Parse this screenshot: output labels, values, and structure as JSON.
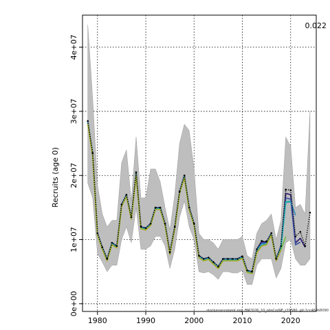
{
  "chart_data": {
    "type": "line",
    "title": "",
    "xlabel": "",
    "ylabel": "Recruits (age 0)",
    "corner_label": "0.022",
    "footnote": "stockassessment.org, BM2026_10_obsCorNE_r19580, git:1cc464b8090",
    "xlim": [
      1976.9,
      2025.3
    ],
    "ylim": [
      -1200000,
      45000000
    ],
    "x_ticks": [
      1980,
      1990,
      2000,
      2010,
      2020
    ],
    "x_tick_labels": [
      "1980",
      "1990",
      "2000",
      "2010",
      "2020"
    ],
    "y_ticks": [
      0,
      10000000,
      20000000,
      30000000,
      40000000
    ],
    "y_tick_labels": [
      "0e+00",
      "1e+07",
      "2e+07",
      "3e+07",
      "4e+07"
    ],
    "grid": true,
    "colors": {
      "band": "#bebebe",
      "band_edge": "#9a9a9a",
      "grid": "#000000",
      "main": "#000000",
      "retro": [
        "#2b1b6b",
        "#3a4ea3",
        "#2e8cb8",
        "#27b0b0",
        "#6fbf4a",
        "#a8a828"
      ]
    },
    "band_years": [
      1978,
      1979,
      1980,
      1981,
      1982,
      1983,
      1984,
      1985,
      1986,
      1987,
      1988,
      1989,
      1990,
      1991,
      1992,
      1993,
      1994,
      1995,
      1996,
      1997,
      1998,
      1999,
      2000,
      2001,
      2002,
      2003,
      2004,
      2005,
      2006,
      2007,
      2008,
      2009,
      2010,
      2011,
      2012,
      2013,
      2014,
      2015,
      2016,
      2017,
      2018,
      2019,
      2020,
      2021,
      2022,
      2023,
      2024
    ],
    "band_lower": [
      18800000,
      16500000,
      7800000,
      6500000,
      5000000,
      6000000,
      6000000,
      10000000,
      12000000,
      9500000,
      15000000,
      8500000,
      8500000,
      9000000,
      10500000,
      10500000,
      9000000,
      5500000,
      8500000,
      13500000,
      16000000,
      12000000,
      10000000,
      5000000,
      4800000,
      5000000,
      4500000,
      3800000,
      5000000,
      5000000,
      4800000,
      4800000,
      5200000,
      3000000,
      3000000,
      6000000,
      7000000,
      7000000,
      7000000,
      4000000,
      5500000,
      9500000,
      10000000,
      7000000,
      6000000,
      6000000,
      7000000
    ],
    "band_upper": [
      43500000,
      32000000,
      18500000,
      14000000,
      12000000,
      13000000,
      13000000,
      22000000,
      24000000,
      16000000,
      26000000,
      16500000,
      16500000,
      21000000,
      21000000,
      19000000,
      15000000,
      11500000,
      17000000,
      25000000,
      28000000,
      27000000,
      21000000,
      11000000,
      10000000,
      10000000,
      9500000,
      8500000,
      10000000,
      10000000,
      10000000,
      10000000,
      10500000,
      7500000,
      7000000,
      11000000,
      12500000,
      13000000,
      14000000,
      10000000,
      13000000,
      26000000,
      24500000,
      15000000,
      15500000,
      14000000,
      30000000
    ],
    "series": [
      {
        "name": "",
        "color": "#000000",
        "style": "dotted-points",
        "x": [
          1978,
          1979,
          1980,
          1981,
          1982,
          1983,
          1984,
          1985,
          1986,
          1987,
          1988,
          1989,
          1990,
          1991,
          1992,
          1993,
          1994,
          1995,
          1996,
          1997,
          1998,
          1999,
          2000,
          2001,
          2002,
          2003,
          2004,
          2005,
          2006,
          2007,
          2008,
          2009,
          2010,
          2011,
          2012,
          2013,
          2014,
          2015,
          2016,
          2017,
          2018,
          2019,
          2020,
          2021,
          2022,
          2023,
          2024
        ],
        "y": [
          28500000,
          23500000,
          11000000,
          8800000,
          7000000,
          9500000,
          9000000,
          15500000,
          17000000,
          13500000,
          20500000,
          12000000,
          11800000,
          12500000,
          15000000,
          15000000,
          12500000,
          8000000,
          12000000,
          17500000,
          20000000,
          15000000,
          12500000,
          7500000,
          7000000,
          7200000,
          6500000,
          5800000,
          7000000,
          7000000,
          7000000,
          7000000,
          7400000,
          5200000,
          5000000,
          8500000,
          9800000,
          9700000,
          11000000,
          7000000,
          9000000,
          17800000,
          17700000,
          10500000,
          11200000,
          9000000,
          14200000
        ]
      },
      {
        "name": "",
        "color": "#2b1b6b",
        "style": "line",
        "x": [
          1978,
          1979,
          1980,
          1981,
          1982,
          1983,
          1984,
          1985,
          1986,
          1987,
          1988,
          1989,
          1990,
          1991,
          1992,
          1993,
          1994,
          1995,
          1996,
          1997,
          1998,
          1999,
          2000,
          2001,
          2002,
          2003,
          2004,
          2005,
          2006,
          2007,
          2008,
          2009,
          2010,
          2011,
          2012,
          2013,
          2014,
          2015,
          2016,
          2017,
          2018,
          2019,
          2020,
          2021,
          2022,
          2023
        ],
        "y": [
          28400000,
          23500000,
          11000000,
          8800000,
          7000000,
          9500000,
          9000000,
          15500000,
          17000000,
          13500000,
          20500000,
          12000000,
          11800000,
          12500000,
          15000000,
          15000000,
          12500000,
          8000000,
          12000000,
          17500000,
          20000000,
          15000000,
          12500000,
          7500000,
          7000000,
          7200000,
          6500000,
          5800000,
          7000000,
          7000000,
          7000000,
          7000000,
          7400000,
          5200000,
          5000000,
          8500000,
          9700000,
          9600000,
          11000000,
          7000000,
          9000000,
          17200000,
          17000000,
          9500000,
          10200000,
          8800000
        ]
      },
      {
        "name": "",
        "color": "#3a4ea3",
        "style": "line",
        "x": [
          1978,
          1979,
          1980,
          1981,
          1982,
          1983,
          1984,
          1985,
          1986,
          1987,
          1988,
          1989,
          1990,
          1991,
          1992,
          1993,
          1994,
          1995,
          1996,
          1997,
          1998,
          1999,
          2000,
          2001,
          2002,
          2003,
          2004,
          2005,
          2006,
          2007,
          2008,
          2009,
          2010,
          2011,
          2012,
          2013,
          2014,
          2015,
          2016,
          2017,
          2018,
          2019,
          2020,
          2021,
          2022
        ],
        "y": [
          28300000,
          23400000,
          11000000,
          8800000,
          7000000,
          9500000,
          9000000,
          15500000,
          17000000,
          13500000,
          20400000,
          12000000,
          11800000,
          12500000,
          15000000,
          15000000,
          12500000,
          8000000,
          12000000,
          17500000,
          20000000,
          15000000,
          12500000,
          7500000,
          7000000,
          7200000,
          6500000,
          5800000,
          7000000,
          7000000,
          7000000,
          7000000,
          7400000,
          5200000,
          5000000,
          8500000,
          9500000,
          9500000,
          11000000,
          7000000,
          9000000,
          16500000,
          16300000,
          9200000,
          9600000
        ]
      },
      {
        "name": "",
        "color": "#2e8cb8",
        "style": "line",
        "x": [
          1978,
          1979,
          1980,
          1981,
          1982,
          1983,
          1984,
          1985,
          1986,
          1987,
          1988,
          1989,
          1990,
          1991,
          1992,
          1993,
          1994,
          1995,
          1996,
          1997,
          1998,
          1999,
          2000,
          2001,
          2002,
          2003,
          2004,
          2005,
          2006,
          2007,
          2008,
          2009,
          2010,
          2011,
          2012,
          2013,
          2014,
          2015,
          2016,
          2017,
          2018,
          2019,
          2020,
          2021
        ],
        "y": [
          28300000,
          23300000,
          10900000,
          8700000,
          6900000,
          9400000,
          8900000,
          15400000,
          16900000,
          13400000,
          20300000,
          11900000,
          11700000,
          12400000,
          14900000,
          14900000,
          12400000,
          7900000,
          11900000,
          17400000,
          19900000,
          14900000,
          12400000,
          7400000,
          6900000,
          7100000,
          6400000,
          5700000,
          6900000,
          6900000,
          6900000,
          6900000,
          7300000,
          5100000,
          4900000,
          8300000,
          9300000,
          9400000,
          10900000,
          6900000,
          8800000,
          15800000,
          15900000,
          13800000
        ]
      },
      {
        "name": "",
        "color": "#27b0b0",
        "style": "line",
        "x": [
          1978,
          1979,
          1980,
          1981,
          1982,
          1983,
          1984,
          1985,
          1986,
          1987,
          1988,
          1989,
          1990,
          1991,
          1992,
          1993,
          1994,
          1995,
          1996,
          1997,
          1998,
          1999,
          2000,
          2001,
          2002,
          2003,
          2004,
          2005,
          2006,
          2007,
          2008,
          2009,
          2010,
          2011,
          2012,
          2013,
          2014,
          2015,
          2016,
          2017,
          2018,
          2019,
          2020
        ],
        "y": [
          28200000,
          23200000,
          10800000,
          8600000,
          6800000,
          9300000,
          8800000,
          15300000,
          16800000,
          13300000,
          20200000,
          11800000,
          11600000,
          12300000,
          14800000,
          14800000,
          12300000,
          7800000,
          11800000,
          17300000,
          19800000,
          14800000,
          12300000,
          7300000,
          6800000,
          7000000,
          6300000,
          5600000,
          6800000,
          6800000,
          6800000,
          6800000,
          7200000,
          5000000,
          4800000,
          8100000,
          9100000,
          9300000,
          10800000,
          6800000,
          8600000,
          15900000,
          16000000
        ]
      },
      {
        "name": "",
        "color": "#6fbf4a",
        "style": "line",
        "x": [
          1978,
          1979,
          1980,
          1981,
          1982,
          1983,
          1984,
          1985,
          1986,
          1987,
          1988,
          1989,
          1990,
          1991,
          1992,
          1993,
          1994,
          1995,
          1996,
          1997,
          1998,
          1999,
          2000,
          2001,
          2002,
          2003,
          2004,
          2005,
          2006,
          2007,
          2008,
          2009,
          2010,
          2011,
          2012,
          2013,
          2014,
          2015,
          2016,
          2017,
          2018,
          2019
        ],
        "y": [
          28100000,
          23100000,
          10700000,
          8500000,
          6700000,
          9200000,
          8700000,
          15200000,
          16700000,
          13200000,
          20100000,
          11700000,
          11500000,
          12200000,
          14700000,
          14700000,
          12200000,
          7700000,
          11700000,
          17200000,
          19700000,
          14700000,
          12200000,
          7200000,
          6700000,
          6900000,
          6200000,
          5500000,
          6700000,
          6700000,
          6700000,
          6700000,
          7100000,
          4900000,
          4700000,
          8000000,
          9000000,
          9200000,
          10700000,
          6700000,
          8400000,
          10500000
        ]
      },
      {
        "name": "",
        "color": "#a8a828",
        "style": "line",
        "x": [
          1978,
          1979,
          1980,
          1981,
          1982,
          1983,
          1984,
          1985,
          1986,
          1987,
          1988,
          1989,
          1990,
          1991,
          1992,
          1993,
          1994,
          1995,
          1996,
          1997,
          1998,
          1999,
          2000,
          2001,
          2002,
          2003,
          2004,
          2005,
          2006,
          2007,
          2008,
          2009,
          2010,
          2011,
          2012,
          2013,
          2014,
          2015,
          2016,
          2017,
          2018
        ],
        "y": [
          28000000,
          23000000,
          10700000,
          8500000,
          6700000,
          9200000,
          8700000,
          15200000,
          16700000,
          13200000,
          20000000,
          11700000,
          11500000,
          12200000,
          14700000,
          14700000,
          12200000,
          7700000,
          11700000,
          17200000,
          19600000,
          14700000,
          12200000,
          7200000,
          6700000,
          6900000,
          6200000,
          5500000,
          6700000,
          6700000,
          6700000,
          6700000,
          7100000,
          4900000,
          4700000,
          8000000,
          9000000,
          9200000,
          10700000,
          6700000,
          8400000
        ]
      }
    ]
  }
}
